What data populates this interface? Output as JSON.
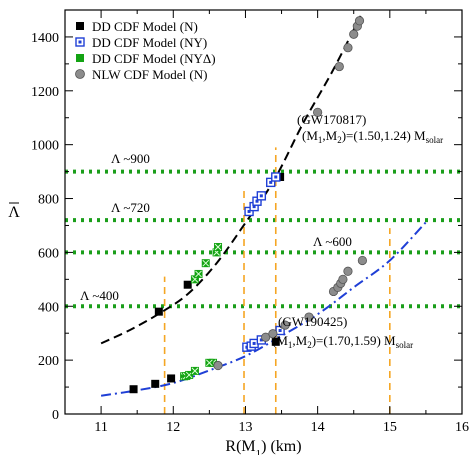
{
  "chart_data": {
    "type": "scatter",
    "xlabel": "R(M",
    "xlabel_sub": "1",
    "xlabel_tail": ") (km)",
    "ylabel": "Λ",
    "xlim": [
      10.5,
      16
    ],
    "ylim": [
      0,
      1500
    ],
    "x_ticks": [
      11,
      12,
      13,
      14,
      15,
      16
    ],
    "y_ticks": [
      0,
      200,
      400,
      600,
      800,
      1000,
      1200,
      1400
    ],
    "legend_position": "top-left",
    "legend": [
      {
        "label": "DD CDF Model (N)",
        "marker": "square-filled",
        "color": "#000000"
      },
      {
        "label": "DD CDF Model (NY)",
        "marker": "square-open",
        "color": "#1f3fd6"
      },
      {
        "label": "DD CDF Model (NYΔ)",
        "marker": "square-x",
        "color": "#13a313"
      },
      {
        "label": "NLW CDF Model (N)",
        "marker": "circle",
        "color": "#8c8c8c"
      }
    ],
    "horizontal_lines": [
      {
        "y": 900,
        "label": "Λ ~900",
        "color": "#1a9e1a"
      },
      {
        "y": 720,
        "label": "Λ ~720",
        "color": "#1a9e1a"
      },
      {
        "y": 600,
        "label": "Λ ~600",
        "color": "#1a9e1a"
      },
      {
        "y": 400,
        "label": "Λ ~400",
        "color": "#1a9e1a"
      }
    ],
    "vertical_lines": [
      {
        "x": 11.88,
        "y_range": [
          0,
          510
        ],
        "color": "#f5a623"
      },
      {
        "x": 12.98,
        "y_range": [
          0,
          830
        ],
        "color": "#f5a623"
      },
      {
        "x": 13.42,
        "y_range": [
          0,
          990
        ],
        "color": "#f5a623"
      },
      {
        "x": 15.0,
        "y_range": [
          0,
          690
        ],
        "color": "#f5a623"
      }
    ],
    "annotations": [
      {
        "text": "(GW170817)",
        "x": 13.6,
        "y": 1075
      },
      {
        "text": "(M1,M2)=(1.50,1.24) Msolar",
        "x": 13.6,
        "y": 985
      },
      {
        "text": "(GW190425)",
        "x": 13.42,
        "y": 300
      },
      {
        "text": "(M1,M2)=(1.70,1.59) Msolar",
        "x": 13.3,
        "y": 215
      }
    ],
    "curves": [
      {
        "name": "GW170817 fit",
        "style": "dashed",
        "color": "#000000",
        "x": [
          11.0,
          11.4,
          11.8,
          12.2,
          12.6,
          13.0,
          13.4,
          13.8,
          14.2,
          14.6
        ],
        "y": [
          262,
          312,
          372,
          445,
          560,
          710,
          870,
          1080,
          1270,
          1480
        ]
      },
      {
        "name": "GW190425 fit",
        "style": "dash-dot",
        "color": "#1f3fd6",
        "x": [
          11.0,
          11.5,
          12.0,
          12.5,
          13.0,
          13.5,
          14.0,
          14.5,
          15.0,
          15.5
        ],
        "y": [
          68,
          88,
          115,
          162,
          215,
          290,
          370,
          470,
          570,
          712
        ]
      }
    ],
    "series": [
      {
        "name": "DD CDF Model (N)",
        "marker": "square-filled",
        "color": "#000000",
        "points": [
          [
            11.45,
            92
          ],
          [
            11.75,
            112
          ],
          [
            11.97,
            132
          ],
          [
            11.8,
            380
          ],
          [
            12.2,
            480
          ],
          [
            13.42,
            268
          ],
          [
            13.48,
            880
          ]
        ]
      },
      {
        "name": "DD CDF Model (NY)",
        "marker": "square-open",
        "color": "#1f3fd6",
        "points": [
          [
            13.02,
            248
          ],
          [
            13.08,
            252
          ],
          [
            13.12,
            262
          ],
          [
            13.22,
            275
          ],
          [
            13.48,
            310
          ],
          [
            13.05,
            752
          ],
          [
            13.12,
            770
          ],
          [
            13.16,
            790
          ],
          [
            13.22,
            810
          ],
          [
            13.35,
            860
          ],
          [
            13.42,
            880
          ]
        ]
      },
      {
        "name": "DD CDF Model (NYΔ)",
        "marker": "square-x",
        "color": "#13a313",
        "points": [
          [
            12.15,
            140
          ],
          [
            12.18,
            141
          ],
          [
            12.22,
            145
          ],
          [
            12.3,
            160
          ],
          [
            12.55,
            190
          ],
          [
            12.5,
            190
          ],
          [
            12.3,
            500
          ],
          [
            12.35,
            520
          ],
          [
            12.45,
            560
          ],
          [
            12.6,
            600
          ],
          [
            12.62,
            620
          ]
        ]
      },
      {
        "name": "NLW CDF Model (N)",
        "marker": "circle",
        "color": "#8c8c8c",
        "points": [
          [
            12.62,
            180
          ],
          [
            13.28,
            285
          ],
          [
            13.38,
            298
          ],
          [
            13.55,
            330
          ],
          [
            13.88,
            360
          ],
          [
            14.22,
            455
          ],
          [
            14.28,
            470
          ],
          [
            14.32,
            485
          ],
          [
            14.35,
            500
          ],
          [
            14.42,
            530
          ],
          [
            14.62,
            570
          ],
          [
            14.0,
            1120
          ],
          [
            14.3,
            1290
          ],
          [
            14.42,
            1360
          ],
          [
            14.5,
            1410
          ],
          [
            14.55,
            1440
          ],
          [
            14.58,
            1460
          ]
        ]
      }
    ]
  }
}
